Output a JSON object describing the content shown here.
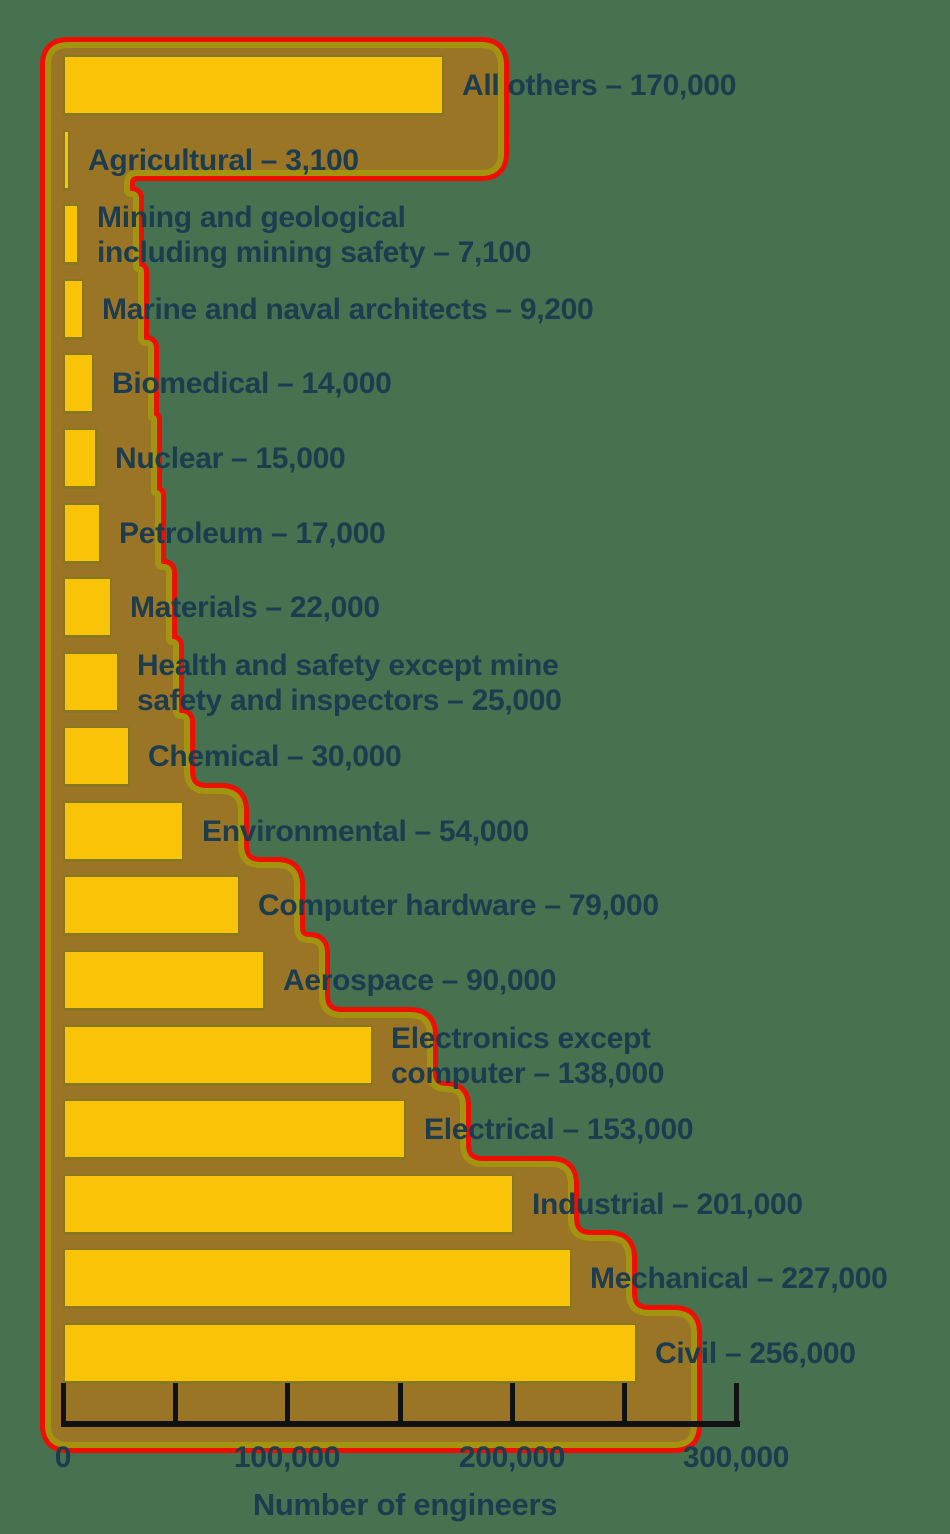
{
  "chart_data": {
    "type": "bar",
    "orientation": "horizontal",
    "xlabel": "Number of engineers",
    "xlim": [
      0,
      300000
    ],
    "x_minor_tick_interval": 50000,
    "grid": false,
    "legend": null,
    "x_ticks": [
      {
        "value": 0,
        "label": "0"
      },
      {
        "value": 100000,
        "label": "100,000"
      },
      {
        "value": 200000,
        "label": "200,000"
      },
      {
        "value": 300000,
        "label": "300,000"
      }
    ],
    "items": [
      {
        "name": "All others",
        "value": 170000,
        "label_display": "All others – 170,000"
      },
      {
        "name": "Agricultural",
        "value": 3100,
        "label_display": "Agricultural – 3,100"
      },
      {
        "name": "Mining and geological including mining safety",
        "value": 7100,
        "label_display": "Mining and geological\nincluding mining safety – 7,100"
      },
      {
        "name": "Marine and naval architects",
        "value": 9200,
        "label_display": "Marine and naval architects – 9,200"
      },
      {
        "name": "Biomedical",
        "value": 14000,
        "label_display": "Biomedical – 14,000"
      },
      {
        "name": "Nuclear",
        "value": 15000,
        "label_display": "Nuclear – 15,000"
      },
      {
        "name": "Petroleum",
        "value": 17000,
        "label_display": "Petroleum – 17,000"
      },
      {
        "name": "Materials",
        "value": 22000,
        "label_display": "Materials – 22,000"
      },
      {
        "name": "Health and safety except mine safety and inspectors",
        "value": 25000,
        "label_display": "Health and safety except mine\nsafety and inspectors – 25,000"
      },
      {
        "name": "Chemical",
        "value": 30000,
        "label_display": "Chemical – 30,000"
      },
      {
        "name": "Environmental",
        "value": 54000,
        "label_display": "Environmental – 54,000"
      },
      {
        "name": "Computer hardware",
        "value": 79000,
        "label_display": "Computer hardware – 79,000"
      },
      {
        "name": "Aerospace",
        "value": 90000,
        "label_display": "Aerospace – 90,000"
      },
      {
        "name": "Electronics except computer",
        "value": 138000,
        "label_display": "Electronics except\ncomputer – 138,000"
      },
      {
        "name": "Electrical",
        "value": 153000,
        "label_display": "Electrical – 153,000"
      },
      {
        "name": "Industrial",
        "value": 201000,
        "label_display": "Industrial – 201,000"
      },
      {
        "name": "Mechanical",
        "value": 227000,
        "label_display": "Mechanical – 227,000"
      },
      {
        "name": "Civil",
        "value": 256000,
        "label_display": "Civil – 256,000"
      }
    ],
    "colors": {
      "background": "#47714F",
      "bar_fill": "#F9C307",
      "bar_edge": "#23404F",
      "glow_fill": "#9B7526",
      "outline_inner": "#A39410",
      "outline_outer": "#EE0F00",
      "text": "#1C3D50",
      "axis": "#121212"
    }
  }
}
